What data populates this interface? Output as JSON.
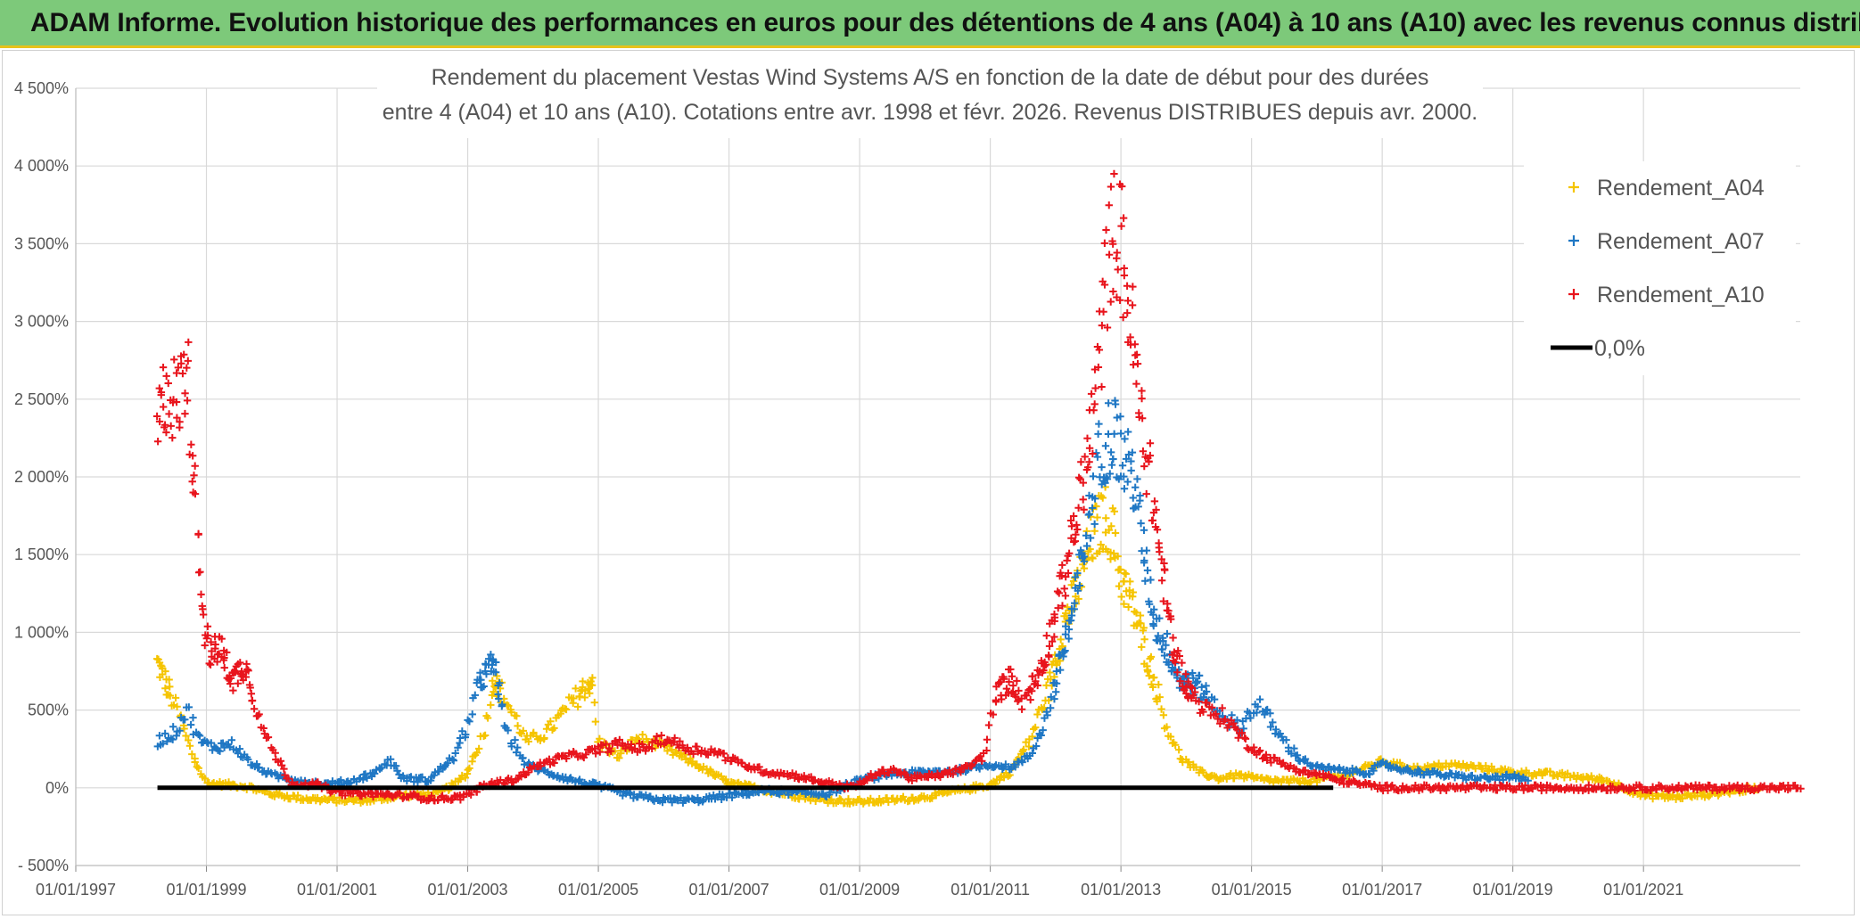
{
  "banner": {
    "title": "ADAM Informe. Evolution historique des performances en euros pour des détentions de 4 ans (A04) à 10 ans (A10) avec les revenus connus distribués"
  },
  "colors": {
    "banner_bg": "#7dc97a",
    "banner_border": "#e8c21a",
    "A04": "#f5c400",
    "A07": "#1f77c4",
    "A10": "#e8141c",
    "zero_line": "#000000",
    "grid": "#d9d9d9"
  },
  "chart_data": {
    "type": "scatter",
    "title_lines": [
      "Rendement du placement Vestas Wind Systems A/S en fonction de la date de début pour des durées",
      "entre 4 (A04) et 10 ans (A10). Cotations entre avr. 1998 et févr. 2026. Revenus DISTRIBUES depuis avr. 2000."
    ],
    "xlabel": "",
    "ylabel": "",
    "xlim": [
      1997.0,
      2023.4
    ],
    "ylim": [
      -500,
      4500
    ],
    "x_ticks": [
      1997,
      1999,
      2001,
      2003,
      2005,
      2007,
      2009,
      2011,
      2013,
      2015,
      2017,
      2019,
      2021
    ],
    "x_tick_labels": [
      "01/01/1997",
      "01/01/1999",
      "01/01/2001",
      "01/01/2003",
      "01/01/2005",
      "01/01/2007",
      "01/01/2009",
      "01/01/2011",
      "01/01/2013",
      "01/01/2015",
      "01/01/2017",
      "01/01/2019",
      "01/01/2021"
    ],
    "y_ticks": [
      -500,
      0,
      500,
      1000,
      1500,
      2000,
      2500,
      3000,
      3500,
      4000,
      4500
    ],
    "y_tick_labels": [
      "- 500%",
      "0%",
      "500%",
      "1 000%",
      "1 500%",
      "2 000%",
      "2 500%",
      "3 000%",
      "3 500%",
      "4 000%",
      "4 500%"
    ],
    "grid": true,
    "legend_position": "top-right",
    "series": [
      {
        "name": "Rendement_A04",
        "marker": "+",
        "x_range": [
          1998.25,
          2022.8
        ],
        "x": [
          1998.25,
          1998.4,
          1998.6,
          1998.8,
          1999.0,
          1999.3,
          1999.6,
          2000.0,
          2000.5,
          2001.0,
          2001.5,
          2002.0,
          2002.5,
          2002.8,
          2003.0,
          2003.25,
          2003.4,
          2003.6,
          2003.9,
          2004.2,
          2004.5,
          2004.75,
          2004.9,
          2005.0,
          2005.3,
          2005.6,
          2006.0,
          2006.5,
          2007.0,
          2007.5,
          2008.0,
          2008.5,
          2009.0,
          2009.5,
          2010.0,
          2010.5,
          2011.0,
          2011.3,
          2011.6,
          2011.9,
          2012.1,
          2012.35,
          2012.55,
          2012.75,
          2012.9,
          2013.0,
          2013.15,
          2013.3,
          2013.5,
          2013.7,
          2013.9,
          2014.2,
          2014.5,
          2014.8,
          2015.2,
          2015.6,
          2016.0,
          2016.4,
          2016.7,
          2017.0,
          2017.3,
          2017.6,
          2018.0,
          2018.5,
          2019.0,
          2019.5,
          2020.0,
          2020.4,
          2020.6,
          2021.0,
          2021.5,
          2022.0,
          2022.4,
          2022.8
        ],
        "y": [
          800,
          650,
          450,
          200,
          30,
          20,
          10,
          -40,
          -70,
          -80,
          -80,
          -50,
          -40,
          20,
          100,
          350,
          700,
          550,
          300,
          350,
          500,
          620,
          700,
          300,
          200,
          320,
          260,
          150,
          30,
          -10,
          -50,
          -80,
          -90,
          -80,
          -60,
          -20,
          20,
          100,
          300,
          650,
          1000,
          1300,
          1600,
          1750,
          1600,
          1350,
          1200,
          1000,
          700,
          400,
          200,
          100,
          60,
          80,
          50,
          40,
          50,
          80,
          120,
          170,
          140,
          120,
          150,
          130,
          100,
          90,
          70,
          50,
          20,
          -50,
          -60,
          -40,
          -20,
          0
        ]
      },
      {
        "name": "Rendement_A07",
        "marker": "+",
        "x_range": [
          1998.25,
          2019.25
        ],
        "x": [
          1998.25,
          1998.5,
          1998.7,
          1998.9,
          1999.1,
          1999.4,
          1999.7,
          2000.0,
          2000.4,
          2000.8,
          2001.2,
          2001.6,
          2001.8,
          2002.0,
          2002.4,
          2002.8,
          2003.0,
          2003.2,
          2003.4,
          2003.6,
          2003.9,
          2004.2,
          2004.6,
          2005.0,
          2005.5,
          2006.0,
          2006.5,
          2007.0,
          2007.5,
          2008.0,
          2008.5,
          2009.0,
          2009.5,
          2010.0,
          2010.5,
          2011.0,
          2011.3,
          2011.6,
          2011.9,
          2012.1,
          2012.3,
          2012.5,
          2012.7,
          2012.9,
          2013.05,
          2013.2,
          2013.35,
          2013.5,
          2013.7,
          2013.9,
          2014.2,
          2014.5,
          2014.8,
          2015.1,
          2015.4,
          2015.7,
          2016.0,
          2016.4,
          2016.8,
          2017.0,
          2017.4,
          2017.8,
          2018.2,
          2018.6,
          2019.0,
          2019.25
        ],
        "y": [
          300,
          350,
          500,
          300,
          260,
          280,
          150,
          80,
          50,
          20,
          40,
          100,
          180,
          60,
          50,
          200,
          400,
          700,
          800,
          350,
          150,
          100,
          50,
          10,
          -50,
          -80,
          -80,
          -50,
          -20,
          -30,
          -40,
          50,
          90,
          100,
          110,
          150,
          130,
          200,
          500,
          850,
          1200,
          1700,
          2200,
          2300,
          2100,
          2000,
          1500,
          1100,
          900,
          700,
          650,
          500,
          380,
          550,
          350,
          200,
          130,
          110,
          100,
          150,
          110,
          90,
          70,
          60,
          70,
          40
        ]
      },
      {
        "name": "Rendement_A10",
        "marker": "+",
        "x_range": [
          1998.25,
          2023.4
        ],
        "x": [
          1998.25,
          1998.4,
          1998.55,
          1998.7,
          1998.85,
          1998.95,
          1999.05,
          1999.2,
          1999.4,
          1999.6,
          1999.8,
          2000.0,
          2000.3,
          2000.7,
          2001.0,
          2001.5,
          2002.0,
          2002.5,
          2002.9,
          2003.3,
          2003.7,
          2004.1,
          2004.5,
          2004.9,
          2005.3,
          2005.7,
          2006.0,
          2006.4,
          2006.8,
          2007.2,
          2007.6,
          2008.0,
          2008.5,
          2008.9,
          2009.2,
          2009.5,
          2009.8,
          2010.2,
          2010.6,
          2010.9,
          2011.1,
          2011.3,
          2011.5,
          2011.7,
          2011.9,
          2012.1,
          2012.25,
          2012.4,
          2012.55,
          2012.7,
          2012.85,
          2013.0,
          2013.15,
          2013.3,
          2013.45,
          2013.6,
          2013.8,
          2014.0,
          2014.3,
          2014.6,
          2014.9,
          2015.2,
          2015.5,
          2015.8,
          2016.1,
          2016.3,
          2017.0,
          2018.0,
          2019.0,
          2020.0,
          2021.0,
          2022.0,
          2023.0,
          2023.4
        ],
        "y": [
          2300,
          2600,
          2450,
          2750,
          1800,
          1100,
          850,
          900,
          700,
          800,
          450,
          250,
          30,
          20,
          -30,
          -40,
          -50,
          -70,
          -60,
          20,
          50,
          150,
          200,
          230,
          280,
          250,
          320,
          250,
          230,
          150,
          100,
          80,
          30,
          0,
          80,
          120,
          60,
          80,
          120,
          200,
          600,
          700,
          560,
          700,
          950,
          1300,
          1600,
          1900,
          2300,
          2900,
          3600,
          3500,
          3000,
          2400,
          2000,
          1500,
          900,
          650,
          500,
          450,
          300,
          200,
          150,
          100,
          80,
          50,
          0,
          0,
          0,
          0,
          0,
          0,
          0,
          0
        ]
      },
      {
        "name": "0,0%",
        "type": "line",
        "x": [
          1998.25,
          2016.25
        ],
        "y": [
          0,
          0
        ]
      }
    ]
  }
}
